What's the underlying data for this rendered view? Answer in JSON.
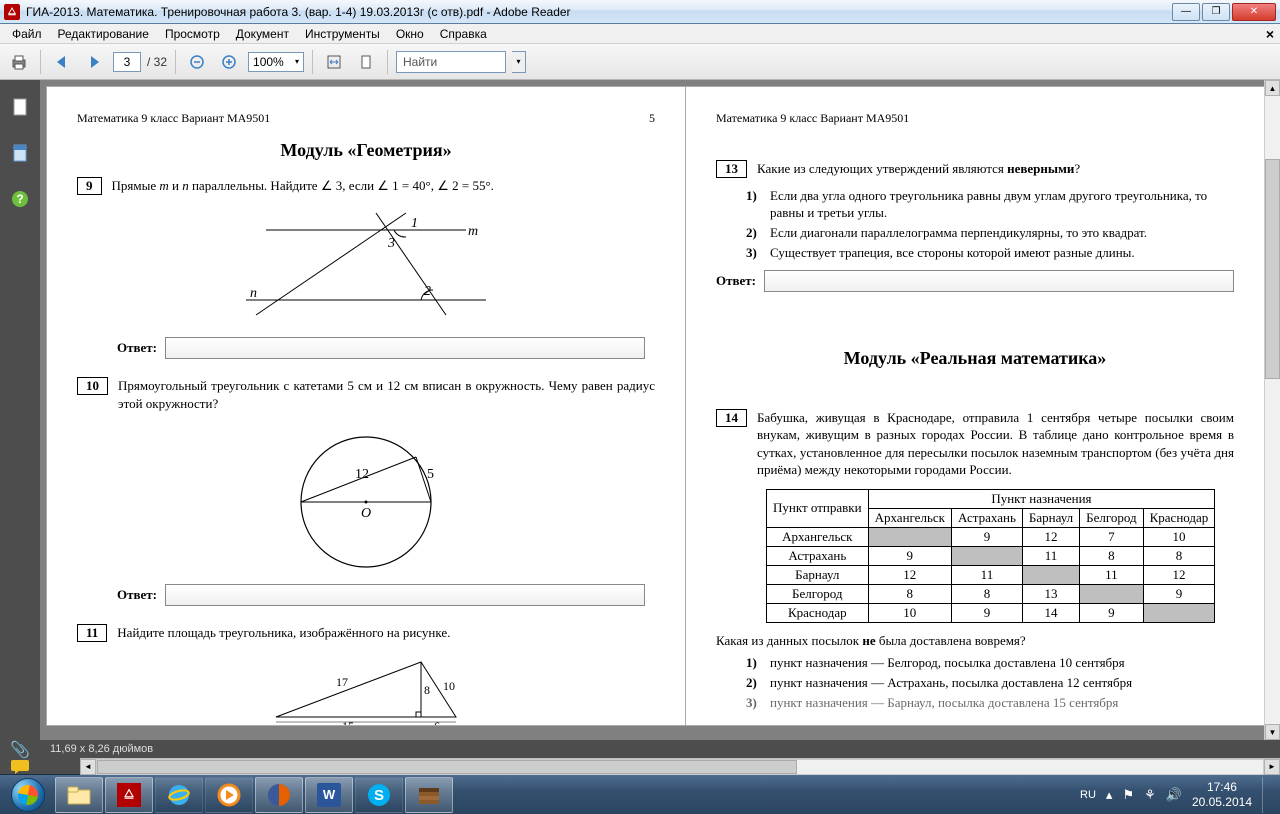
{
  "window": {
    "title": "ГИА-2013. Математика. Тренировочная работа 3. (вар. 1-4) 19.03.2013г (с отв).pdf - Adobe Reader"
  },
  "menu": [
    "Файл",
    "Редактирование",
    "Просмотр",
    "Документ",
    "Инструменты",
    "Окно",
    "Справка"
  ],
  "toolbar": {
    "current_page": "3",
    "total_pages": "/ 32",
    "zoom": "100%",
    "find_placeholder": "Найти"
  },
  "status_text": "11,69 x 8,26 дюймов",
  "doc": {
    "header_left": "Математика  9 класс  Вариант МА9501",
    "header_left_pnum": "5",
    "mod1_title": "Модуль «Геометрия»",
    "p9": {
      "num": "9",
      "text": "Прямые m и n параллельны. Найдите ∠ 3, если ∠ 1 = 40°, ∠ 2 = 55°."
    },
    "p10": {
      "num": "10",
      "text": "Прямоугольный треугольник с катетами 5 см и 12 см вписан в окружность. Чему равен радиус этой окружности?"
    },
    "p11": {
      "num": "11",
      "text": "Найдите площадь треугольника, изображённого на рисунке."
    },
    "answer_label": "Ответ:",
    "header_right": "Математика  9 класс  Вариант МА9501",
    "p13": {
      "num": "13",
      "intro": "Какие из следующих утверждений являются ",
      "bold": "неверными",
      "q": "?",
      "items": [
        "Если два угла одного треугольника равны двум углам другого треугольника, то равны и третьи углы.",
        "Если диагонали параллелограмма перпендикулярны, то это квадрат.",
        "Существует трапеция, все стороны которой имеют разные длины."
      ]
    },
    "mod2_title": "Модуль «Реальная математика»",
    "p14": {
      "num": "14",
      "text": "Бабушка, живущая в Краснодаре, отправила 1 сентября четыре посылки своим внукам, живущим в разных городах России. В таблице дано контрольное время в сутках, установленное для пересылки посылок наземным транспортом (без учёта дня приёма) между некоторыми городами России."
    },
    "table": {
      "header1": "Пункт отправки",
      "header2": "Пункт назначения",
      "cols": [
        "Архангельск",
        "Астрахань",
        "Барнаул",
        "Белгород",
        "Краснодар"
      ],
      "rows": [
        {
          "name": "Архангельск",
          "cells": [
            "",
            "9",
            "12",
            "7",
            "10"
          ],
          "shade": [
            0
          ]
        },
        {
          "name": "Астрахань",
          "cells": [
            "9",
            "",
            "11",
            "8",
            "8"
          ],
          "shade": [
            1
          ]
        },
        {
          "name": "Барнаул",
          "cells": [
            "12",
            "11",
            "",
            "11",
            "12"
          ],
          "shade": [
            2
          ]
        },
        {
          "name": "Белгород",
          "cells": [
            "8",
            "8",
            "13",
            "",
            "9"
          ],
          "shade": [
            3
          ]
        },
        {
          "name": "Краснодар",
          "cells": [
            "10",
            "9",
            "14",
            "9",
            ""
          ],
          "shade": [
            4
          ]
        }
      ]
    },
    "p14_q": "Какая из данных посылок ",
    "p14_q_bold": "не",
    "p14_q2": " была доставлена вовремя?",
    "p14_opts": [
      "пункт назначения — Белгород, посылка доставлена 10 сентября",
      "пункт назначения — Астрахань, посылка доставлена 12 сентября",
      "пункт назначения — Барнаул, посылка доставлена 15 сентября"
    ]
  },
  "tray": {
    "lang": "RU",
    "time": "17:46",
    "date": "20.05.2014"
  }
}
